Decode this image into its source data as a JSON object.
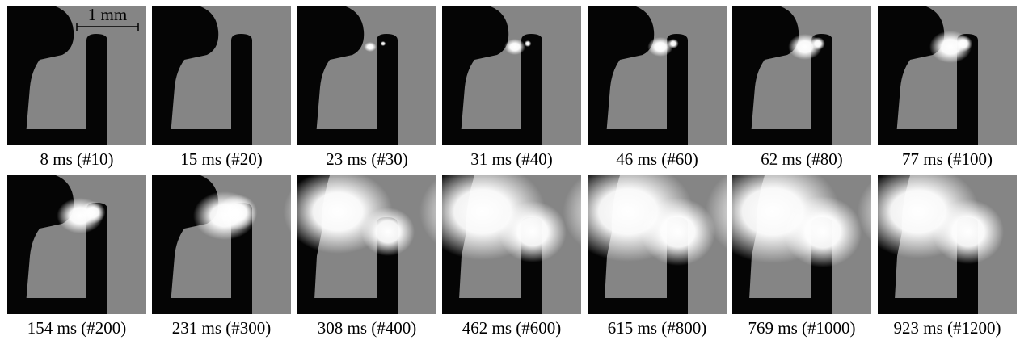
{
  "scale_bar": "1 mm",
  "frames": [
    {
      "caption": "8 ms (#10)"
    },
    {
      "caption": "15 ms (#20)"
    },
    {
      "caption": "23 ms (#30)"
    },
    {
      "caption": "31 ms (#40)"
    },
    {
      "caption": "46 ms (#60)"
    },
    {
      "caption": "62 ms (#80)"
    },
    {
      "caption": "77 ms (#100)"
    },
    {
      "caption": "154 ms (#200)"
    },
    {
      "caption": "231 ms (#300)"
    },
    {
      "caption": "308 ms (#400)"
    },
    {
      "caption": "462 ms (#600)"
    },
    {
      "caption": "615 ms (#800)"
    },
    {
      "caption": "769 ms (#1000)"
    },
    {
      "caption": "923 ms (#1200)"
    }
  ]
}
